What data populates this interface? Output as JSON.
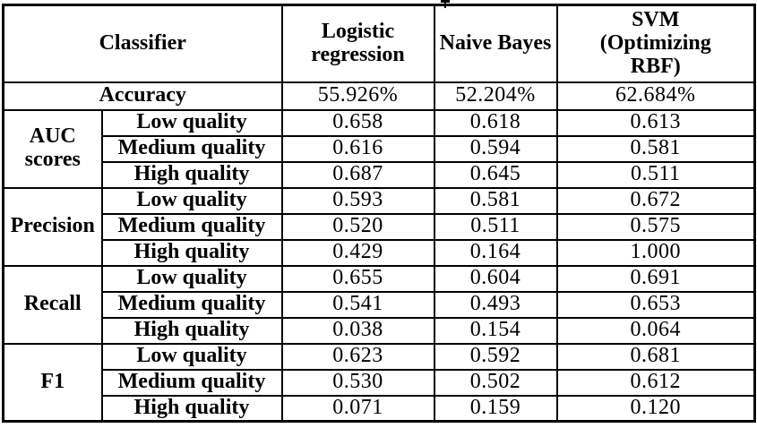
{
  "table": {
    "header": {
      "classifier_label": "Classifier",
      "columns": [
        "Logistic\nregression",
        "Naive Bayes",
        "SVM\n(Optimizing\nRBF)"
      ]
    },
    "accuracy": {
      "label": "Accuracy",
      "values": [
        "55.926%",
        "52.204%",
        "62.684%"
      ]
    },
    "groups": [
      {
        "label": "AUC\nscores",
        "rows": [
          {
            "label": "Low quality",
            "values": [
              "0.658",
              "0.618",
              "0.613"
            ]
          },
          {
            "label": "Medium quality",
            "values": [
              "0.616",
              "0.594",
              "0.581"
            ]
          },
          {
            "label": "High quality",
            "values": [
              "0.687",
              "0.645",
              "0.511"
            ]
          }
        ]
      },
      {
        "label": "Precision",
        "rows": [
          {
            "label": "Low quality",
            "values": [
              "0.593",
              "0.581",
              "0.672"
            ]
          },
          {
            "label": "Medium quality",
            "values": [
              "0.520",
              "0.511",
              "0.575"
            ]
          },
          {
            "label": "High quality",
            "values": [
              "0.429",
              "0.164",
              "1.000"
            ]
          }
        ]
      },
      {
        "label": "Recall",
        "rows": [
          {
            "label": "Low quality",
            "values": [
              "0.655",
              "0.604",
              "0.691"
            ]
          },
          {
            "label": "Medium quality",
            "values": [
              "0.541",
              "0.493",
              "0.653"
            ]
          },
          {
            "label": "High quality",
            "values": [
              "0.038",
              "0.154",
              "0.064"
            ]
          }
        ]
      },
      {
        "label": "F1",
        "rows": [
          {
            "label": "Low quality",
            "values": [
              "0.623",
              "0.592",
              "0.681"
            ]
          },
          {
            "label": "Medium quality",
            "values": [
              "0.530",
              "0.502",
              "0.612"
            ]
          },
          {
            "label": "High quality",
            "values": [
              "0.071",
              "0.159",
              "0.120"
            ]
          }
        ]
      }
    ]
  }
}
